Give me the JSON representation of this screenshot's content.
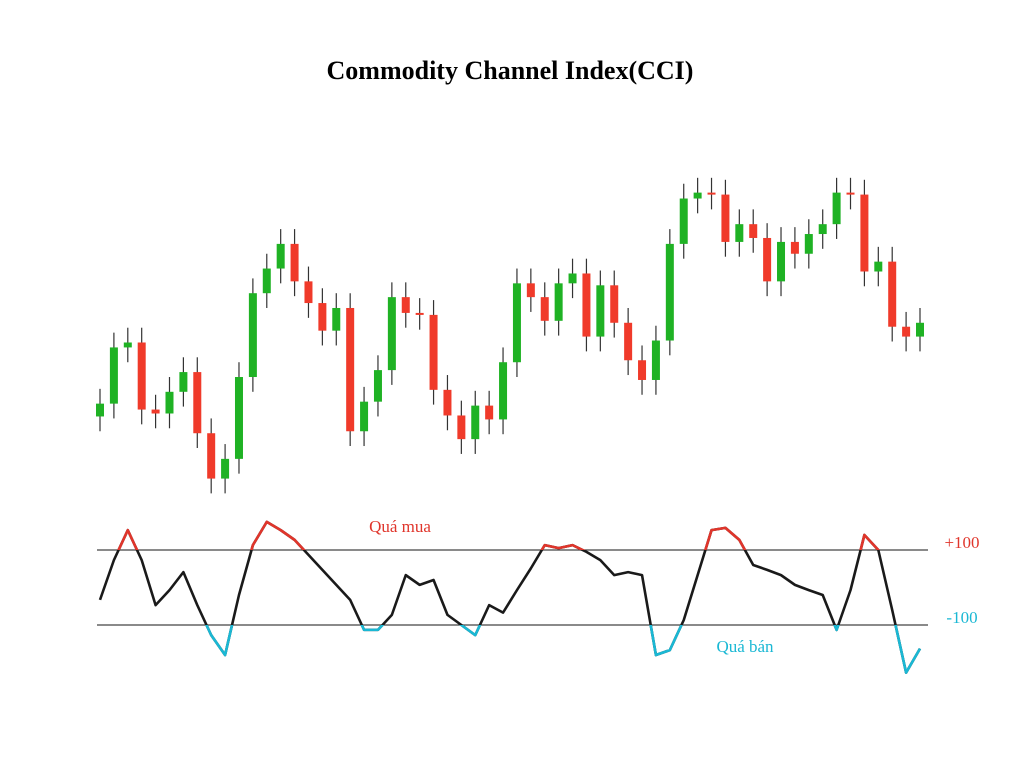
{
  "chart_data": [
    {
      "type": "candlestick",
      "title": "Commodity Channel Index(CCI)",
      "up_color": "#1fb224",
      "down_color": "#f03a2a",
      "wick_color": "#333333",
      "ylim": [
        0,
        360
      ],
      "open": [
        105,
        118,
        175,
        180,
        112,
        108,
        130,
        150,
        88,
        42,
        62,
        145,
        230,
        255,
        280,
        242,
        220,
        192,
        215,
        90,
        120,
        152,
        226,
        210,
        208,
        132,
        106,
        82,
        116,
        102,
        160,
        240,
        226,
        202,
        240,
        250,
        186,
        238,
        200,
        162,
        142,
        182,
        280,
        326,
        332,
        330,
        282,
        300,
        286,
        242,
        282,
        270,
        290,
        300,
        332,
        330,
        252,
        262,
        196,
        186
      ],
      "high": [
        133,
        190,
        195,
        195,
        127,
        145,
        165,
        165,
        103,
        77,
        160,
        245,
        270,
        295,
        295,
        257,
        235,
        230,
        230,
        135,
        167,
        241,
        241,
        225,
        223,
        147,
        121,
        131,
        131,
        175,
        255,
        255,
        241,
        255,
        265,
        265,
        253,
        253,
        215,
        177,
        197,
        295,
        341,
        347,
        347,
        345,
        315,
        315,
        301,
        297,
        297,
        305,
        315,
        347,
        347,
        345,
        277,
        277,
        211,
        215
      ],
      "low": [
        90,
        103,
        160,
        97,
        93,
        93,
        115,
        73,
        27,
        27,
        47,
        130,
        215,
        240,
        227,
        205,
        177,
        177,
        75,
        75,
        105,
        137,
        195,
        193,
        117,
        91,
        67,
        67,
        87,
        87,
        145,
        211,
        187,
        187,
        225,
        171,
        171,
        185,
        147,
        127,
        127,
        167,
        265,
        311,
        315,
        267,
        267,
        271,
        227,
        227,
        255,
        255,
        275,
        285,
        315,
        237,
        237,
        181,
        171,
        171
      ],
      "close": [
        118,
        175,
        180,
        112,
        108,
        130,
        150,
        88,
        42,
        62,
        145,
        230,
        255,
        280,
        242,
        220,
        192,
        215,
        90,
        120,
        152,
        226,
        210,
        208,
        132,
        106,
        82,
        116,
        102,
        160,
        240,
        226,
        202,
        240,
        250,
        186,
        238,
        200,
        162,
        142,
        182,
        280,
        326,
        332,
        330,
        282,
        300,
        286,
        242,
        282,
        270,
        290,
        300,
        332,
        330,
        252,
        262,
        196,
        186,
        200
      ]
    },
    {
      "type": "line",
      "color": "#1a1a1a",
      "overbought_color": "#e0352b",
      "oversold_color": "#1ab8d4",
      "ylim": [
        -240,
        200
      ],
      "yticks": [
        {
          "value": 100,
          "label": "+100"
        },
        -100
      ],
      "annotations": [
        "Quá mua",
        "Quá bán"
      ],
      "values": [
        -33,
        73,
        153,
        73,
        -47,
        -7,
        41,
        -47,
        -127,
        -180,
        -20,
        113,
        175,
        153,
        127,
        87,
        47,
        7,
        -33,
        -113,
        -113,
        -73,
        33,
        7,
        20,
        -73,
        -100,
        -127,
        -47,
        -67,
        -7,
        51,
        113,
        105,
        113,
        95,
        73,
        33,
        41,
        33,
        -180,
        -167,
        -87,
        33,
        153,
        159,
        127,
        60,
        47,
        33,
        7,
        -7,
        -20,
        -113,
        -7,
        140,
        100,
        -60,
        -227,
        -163
      ]
    }
  ]
}
